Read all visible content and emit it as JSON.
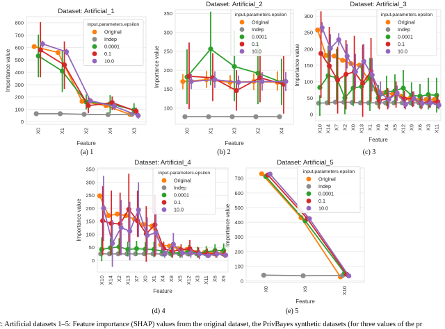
{
  "figure_caption": "ure 2: Artificial datasets 1–5: Feature importance (SHAP) values from the original dataset, the PrivBayes synthetic datasets (for three values of the pr",
  "legend_title": "input.parameters.epsilon",
  "series_colors": {
    "Original": "#ff7f0e",
    "Indep": "#8c8c8c",
    "0.0001": "#2ca02c",
    "0.1": "#d62728",
    "10.0": "#9467bd"
  },
  "chart_data": [
    {
      "type": "line",
      "subtype": "pointplot-with-error-bars",
      "title": "Dataset: Artificial_1",
      "caption": "(a) 1",
      "xlabel": "Feature",
      "ylabel": "Importance value",
      "categories": [
        "X0",
        "X1",
        "X2",
        "X4",
        "X3"
      ],
      "ylim": [
        -20,
        850
      ],
      "yticks": [
        0,
        100,
        200,
        300,
        400,
        500,
        600,
        700,
        800
      ],
      "grid": true,
      "legend_position": "top-right",
      "series": [
        {
          "name": "Original",
          "values": [
            608,
            560,
            165,
            130,
            60
          ],
          "err_low": [
            608,
            560,
            165,
            130,
            60
          ],
          "err_high": [
            608,
            560,
            165,
            130,
            60
          ]
        },
        {
          "name": "Indep",
          "values": [
            65,
            65,
            60,
            58,
            60
          ],
          "err_low": [
            65,
            65,
            60,
            58,
            60
          ],
          "err_high": [
            65,
            65,
            60,
            58,
            60
          ]
        },
        {
          "name": "0.0001",
          "values": [
            532,
            410,
            160,
            145,
            95
          ],
          "err_low": [
            360,
            240,
            100,
            70,
            60
          ],
          "err_high": [
            705,
            580,
            220,
            215,
            150
          ]
        },
        {
          "name": "0.1",
          "values": [
            580,
            460,
            130,
            155,
            85
          ],
          "err_low": [
            360,
            265,
            70,
            95,
            50
          ],
          "err_high": [
            805,
            650,
            200,
            205,
            115
          ]
        },
        {
          "name": "10.0",
          "values": [
            630,
            565,
            170,
            125,
            50
          ],
          "err_low": [
            600,
            540,
            150,
            95,
            25
          ],
          "err_high": [
            655,
            590,
            190,
            160,
            75
          ]
        }
      ]
    },
    {
      "type": "line",
      "subtype": "pointplot-with-error-bars",
      "title": "Dataset: Artificial_2",
      "caption": "(b) 2",
      "xlabel": "Feature",
      "ylabel": "Importance value",
      "categories": [
        "X0",
        "X1",
        "X3",
        "X2",
        "X4"
      ],
      "ylim": [
        57,
        360
      ],
      "yticks": [
        100,
        150,
        200,
        250,
        300,
        350
      ],
      "grid": true,
      "legend_position": "top-right",
      "series": [
        {
          "name": "Original",
          "values": [
            170,
            175,
            168,
            170,
            168
          ],
          "err_low": [
            150,
            153,
            150,
            147,
            146
          ],
          "err_high": [
            190,
            198,
            187,
            192,
            197
          ]
        },
        {
          "name": "Indep",
          "values": [
            77,
            77,
            77,
            77,
            77
          ],
          "err_low": [
            77,
            77,
            77,
            77,
            77
          ],
          "err_high": [
            77,
            77,
            77,
            77,
            77
          ]
        },
        {
          "name": "0.0001",
          "values": [
            182,
            256,
            210,
            192,
            168
          ],
          "err_low": [
            110,
            160,
            118,
            110,
            108
          ],
          "err_high": [
            255,
            355,
            305,
            275,
            230
          ]
        },
        {
          "name": "0.1",
          "values": [
            184,
            180,
            146,
            180,
            163
          ],
          "err_low": [
            97,
            118,
            93,
            115,
            85
          ],
          "err_high": [
            273,
            245,
            200,
            245,
            238
          ]
        },
        {
          "name": "10.0",
          "values": [
            170,
            175,
            168,
            170,
            170
          ],
          "err_low": [
            150,
            153,
            148,
            146,
            145
          ],
          "err_high": [
            190,
            197,
            186,
            195,
            195
          ]
        }
      ]
    },
    {
      "type": "line",
      "subtype": "pointplot-with-error-bars",
      "title": "Dataset: Artificial_3",
      "caption": "(c) 3",
      "xlabel": "Feature",
      "ylabel": "Importance value",
      "categories": [
        "X10",
        "X14",
        "X7",
        "X2",
        "X0",
        "X13",
        "X1",
        "X8",
        "X4",
        "X5",
        "X12",
        "X9",
        "X6",
        "X3",
        "X11"
      ],
      "ylim": [
        -20,
        320
      ],
      "yticks": [
        0,
        50,
        100,
        150,
        200,
        250,
        300
      ],
      "grid": true,
      "legend_position": "top-right",
      "series": [
        {
          "name": "Original",
          "values": [
            258,
            180,
            178,
            165,
            155,
            150,
            110,
            75,
            65,
            62,
            55,
            48,
            42,
            45,
            45
          ],
          "err_low": [
            258,
            180,
            178,
            165,
            155,
            150,
            110,
            75,
            65,
            62,
            55,
            48,
            42,
            45,
            45
          ],
          "err_high": [
            258,
            180,
            178,
            165,
            155,
            150,
            110,
            75,
            65,
            62,
            55,
            48,
            42,
            45,
            45
          ]
        },
        {
          "name": "Indep",
          "values": [
            34,
            35,
            37,
            37,
            36,
            35,
            35,
            35,
            35,
            35,
            35,
            35,
            35,
            35,
            35
          ],
          "err_low": [
            34,
            35,
            37,
            37,
            36,
            35,
            35,
            35,
            35,
            35,
            35,
            35,
            35,
            35,
            35
          ],
          "err_high": [
            34,
            35,
            37,
            37,
            36,
            35,
            35,
            35,
            35,
            35,
            35,
            35,
            35,
            35,
            35
          ]
        },
        {
          "name": "0.0001",
          "values": [
            82,
            118,
            112,
            50,
            80,
            85,
            112,
            50,
            68,
            72,
            80,
            58,
            55,
            60,
            58
          ],
          "err_low": [
            -5,
            30,
            40,
            0,
            25,
            35,
            10,
            18,
            25,
            30,
            40,
            25,
            18,
            15,
            5
          ],
          "err_high": [
            58,
            210,
            200,
            120,
            140,
            150,
            172,
            90,
            118,
            122,
            135,
            98,
            93,
            112,
            112
          ]
        },
        {
          "name": "0.1",
          "values": [
            186,
            148,
            105,
            122,
            130,
            95,
            132,
            42,
            48,
            62,
            47,
            48,
            35,
            37,
            38
          ],
          "err_low": [
            50,
            28,
            2,
            15,
            35,
            -8,
            38,
            15,
            15,
            20,
            18,
            22,
            15,
            20,
            18
          ],
          "err_high": [
            315,
            267,
            207,
            227,
            240,
            213,
            233,
            72,
            80,
            100,
            72,
            70,
            55,
            58,
            58
          ]
        },
        {
          "name": "10.0",
          "values": [
            265,
            202,
            228,
            178,
            130,
            162,
            120,
            65,
            45,
            65,
            30,
            48,
            33,
            35,
            28
          ],
          "err_low": [
            250,
            160,
            210,
            140,
            80,
            110,
            70,
            30,
            20,
            40,
            15,
            25,
            18,
            20,
            15
          ],
          "err_high": [
            282,
            245,
            248,
            215,
            185,
            215,
            172,
            100,
            75,
            88,
            50,
            70,
            55,
            55,
            40
          ]
        }
      ]
    },
    {
      "type": "line",
      "subtype": "pointplot-with-error-bars",
      "title": "Dataset: Artificial_4",
      "caption": "(d) 4",
      "xlabel": "Feature",
      "ylabel": "Importance value",
      "categories": [
        "X10",
        "X14",
        "X2",
        "X13",
        "X7",
        "X0",
        "X1",
        "X4",
        "X8",
        "X5",
        "X12",
        "X3",
        "X11",
        "X6",
        "X9"
      ],
      "ylim": [
        -45,
        355
      ],
      "yticks": [
        0,
        50,
        100,
        150,
        200,
        250,
        300,
        350
      ],
      "grid": true,
      "legend_position": "top-right",
      "series": [
        {
          "name": "Original",
          "values": [
            248,
            172,
            178,
            172,
            158,
            138,
            132,
            60,
            55,
            45,
            42,
            30,
            30,
            30,
            28
          ],
          "err_low": [
            248,
            172,
            178,
            172,
            158,
            138,
            132,
            60,
            55,
            45,
            42,
            30,
            30,
            30,
            28
          ],
          "err_high": [
            248,
            172,
            178,
            172,
            158,
            138,
            132,
            60,
            55,
            45,
            42,
            30,
            30,
            30,
            28
          ]
        },
        {
          "name": "Indep",
          "values": [
            25,
            25,
            25,
            25,
            25,
            25,
            25,
            25,
            25,
            25,
            25,
            25,
            25,
            25,
            25
          ],
          "err_low": [
            25,
            25,
            25,
            25,
            25,
            25,
            25,
            25,
            25,
            25,
            25,
            25,
            25,
            25,
            25
          ],
          "err_high": [
            25,
            25,
            25,
            25,
            25,
            25,
            25,
            25,
            25,
            25,
            25,
            25,
            25,
            25,
            25
          ]
        },
        {
          "name": "0.0001",
          "values": [
            42,
            48,
            52,
            42,
            45,
            43,
            42,
            35,
            30,
            28,
            35,
            28,
            32,
            38,
            38
          ],
          "err_low": [
            -3,
            20,
            25,
            15,
            20,
            18,
            12,
            15,
            12,
            10,
            15,
            10,
            12,
            18,
            18
          ],
          "err_high": [
            88,
            85,
            85,
            72,
            75,
            70,
            72,
            58,
            55,
            52,
            60,
            52,
            55,
            62,
            65
          ]
        },
        {
          "name": "0.1",
          "values": [
            152,
            142,
            140,
            196,
            152,
            102,
            137,
            45,
            35,
            40,
            45,
            28,
            25,
            25,
            22
          ],
          "err_low": [
            20,
            20,
            20,
            70,
            90,
            -5,
            15,
            20,
            10,
            15,
            18,
            10,
            10,
            10,
            10
          ],
          "err_high": [
            285,
            268,
            260,
            333,
            268,
            208,
            252,
            72,
            62,
            62,
            78,
            50,
            45,
            45,
            40
          ]
        },
        {
          "name": "10.0",
          "values": [
            200,
            65,
            126,
            112,
            194,
            96,
            106,
            24,
            62,
            28,
            28,
            25,
            18,
            25,
            20
          ],
          "err_low": [
            75,
            -25,
            20,
            0,
            90,
            30,
            20,
            10,
            20,
            10,
            10,
            5,
            10,
            10,
            10
          ],
          "err_high": [
            325,
            155,
            232,
            225,
            300,
            165,
            192,
            40,
            105,
            45,
            45,
            40,
            30,
            40,
            30
          ]
        }
      ]
    },
    {
      "type": "line",
      "subtype": "pointplot-with-error-bars",
      "title": "Dataset: Artificial_5",
      "caption": "(e) 5",
      "xlabel": "Feature",
      "ylabel": "Importance value",
      "categories": [
        "X0",
        "X9",
        "X10"
      ],
      "ylim": [
        -10,
        770
      ],
      "yticks": [
        0,
        100,
        200,
        300,
        400,
        500,
        600,
        700
      ],
      "grid": true,
      "legend_position": "top-right",
      "series": [
        {
          "name": "Original",
          "values": [
            730,
            432,
            28
          ],
          "err_low": [
            730,
            432,
            28
          ],
          "err_high": [
            730,
            432,
            28
          ]
        },
        {
          "name": "Indep",
          "values": [
            40,
            36,
            38
          ],
          "err_low": [
            40,
            36,
            38
          ],
          "err_high": [
            40,
            36,
            38
          ]
        },
        {
          "name": "0.0001",
          "values": [
            712,
            410,
            55
          ],
          "err_low": [
            712,
            410,
            55
          ],
          "err_high": [
            712,
            410,
            55
          ]
        },
        {
          "name": "0.1",
          "values": [
            722,
            425,
            45
          ],
          "err_low": [
            722,
            425,
            45
          ],
          "err_high": [
            722,
            425,
            45
          ]
        },
        {
          "name": "10.0",
          "values": [
            728,
            425,
            35
          ],
          "err_low": [
            728,
            425,
            35
          ],
          "err_high": [
            728,
            425,
            35
          ]
        }
      ]
    }
  ]
}
